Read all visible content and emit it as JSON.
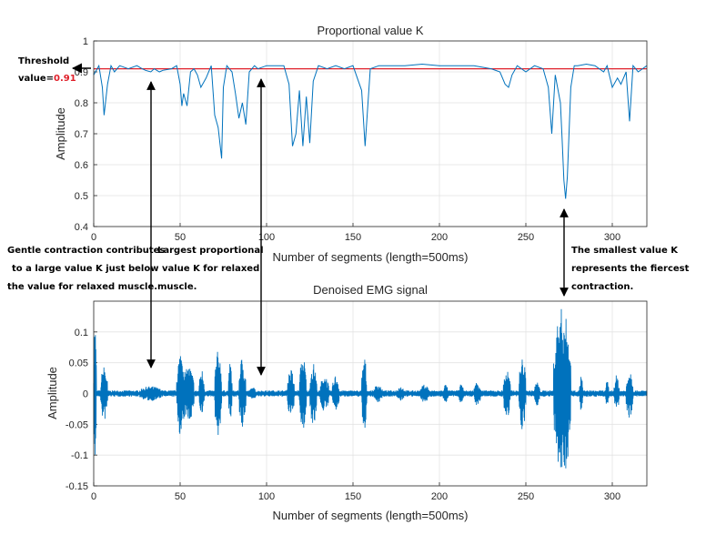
{
  "chart_data": [
    {
      "type": "line",
      "title": "Proportional value K",
      "xlabel": "Number of segments (length=500ms)",
      "ylabel": "Amplitude",
      "xlim": [
        0,
        320
      ],
      "ylim": [
        0.4,
        1
      ],
      "xticks": [
        "0",
        "50",
        "100",
        "150",
        "200",
        "250",
        "300"
      ],
      "yticks": [
        "0.4",
        "0.5",
        "0.6",
        "0.7",
        "0.8",
        "0.9",
        "1"
      ],
      "grid": true,
      "line_color": "#0072bd",
      "threshold": {
        "value": 0.91,
        "color": "#e0202a"
      },
      "series": [
        {
          "x": [
            0,
            3,
            5,
            6,
            8,
            10,
            12,
            15,
            20,
            25,
            28,
            30,
            33,
            35,
            38,
            40,
            45,
            48,
            50,
            51,
            52,
            54,
            56,
            58,
            60,
            62,
            65,
            68,
            70,
            72,
            74,
            75,
            77,
            80,
            82,
            84,
            86,
            88,
            90,
            93,
            95,
            100,
            105,
            110,
            113,
            115,
            117,
            119,
            121,
            123,
            125,
            127,
            130,
            135,
            140,
            145,
            150,
            155,
            157,
            160,
            165,
            170,
            180,
            190,
            200,
            210,
            220,
            230,
            235,
            238,
            240,
            242,
            245,
            250,
            255,
            260,
            263,
            265,
            267,
            270,
            271,
            272,
            273,
            274,
            276,
            278,
            280,
            285,
            290,
            295,
            297,
            300,
            303,
            305,
            308,
            310,
            312,
            315,
            320
          ],
          "y": [
            0.89,
            0.92,
            0.85,
            0.76,
            0.86,
            0.92,
            0.9,
            0.92,
            0.91,
            0.92,
            0.91,
            0.905,
            0.9,
            0.91,
            0.9,
            0.905,
            0.91,
            0.92,
            0.86,
            0.79,
            0.83,
            0.79,
            0.9,
            0.91,
            0.89,
            0.85,
            0.88,
            0.92,
            0.76,
            0.72,
            0.62,
            0.85,
            0.92,
            0.9,
            0.83,
            0.75,
            0.8,
            0.73,
            0.9,
            0.92,
            0.91,
            0.92,
            0.92,
            0.92,
            0.86,
            0.66,
            0.7,
            0.84,
            0.66,
            0.82,
            0.67,
            0.87,
            0.92,
            0.91,
            0.92,
            0.91,
            0.92,
            0.84,
            0.66,
            0.91,
            0.92,
            0.92,
            0.92,
            0.925,
            0.92,
            0.92,
            0.92,
            0.91,
            0.9,
            0.86,
            0.85,
            0.89,
            0.92,
            0.9,
            0.92,
            0.91,
            0.85,
            0.7,
            0.89,
            0.8,
            0.68,
            0.55,
            0.49,
            0.56,
            0.85,
            0.92,
            0.92,
            0.925,
            0.92,
            0.9,
            0.92,
            0.85,
            0.88,
            0.86,
            0.9,
            0.74,
            0.92,
            0.9,
            0.92
          ]
        }
      ]
    },
    {
      "type": "line",
      "title": "Denoised EMG signal",
      "xlabel": "Number of segments (length=500ms)",
      "ylabel": "Amplitude",
      "xlim": [
        0,
        320
      ],
      "ylim": [
        -0.15,
        0.15
      ],
      "xticks": [
        "0",
        "50",
        "100",
        "150",
        "200",
        "250",
        "300"
      ],
      "yticks": [
        "-0.15",
        "-0.1",
        "-0.05",
        "0",
        "0.05",
        "0.1"
      ],
      "grid": true,
      "line_color": "#0072bd",
      "bursts": [
        {
          "x": [
            0,
            1.5
          ],
          "amplitude": 0.12
        },
        {
          "x": [
            4,
            8
          ],
          "amplitude": 0.045
        },
        {
          "x": [
            26,
            40
          ],
          "amplitude": 0.012
        },
        {
          "x": [
            48,
            53
          ],
          "amplitude": 0.07
        },
        {
          "x": [
            52,
            58
          ],
          "amplitude": 0.045
        },
        {
          "x": [
            61,
            64
          ],
          "amplitude": 0.04
        },
        {
          "x": [
            70,
            74
          ],
          "amplitude": 0.07
        },
        {
          "x": [
            78,
            80
          ],
          "amplitude": 0.05
        },
        {
          "x": [
            84,
            88
          ],
          "amplitude": 0.06
        },
        {
          "x": [
            90,
            94
          ],
          "amplitude": 0.01
        },
        {
          "x": [
            112,
            116
          ],
          "amplitude": 0.04
        },
        {
          "x": [
            119,
            123
          ],
          "amplitude": 0.06
        },
        {
          "x": [
            125,
            129
          ],
          "amplitude": 0.05
        },
        {
          "x": [
            131,
            136
          ],
          "amplitude": 0.03
        },
        {
          "x": [
            138,
            142
          ],
          "amplitude": 0.03
        },
        {
          "x": [
            155,
            158
          ],
          "amplitude": 0.06
        },
        {
          "x": [
            162,
            167
          ],
          "amplitude": 0.015
        },
        {
          "x": [
            175,
            180
          ],
          "amplitude": 0.012
        },
        {
          "x": [
            189,
            194
          ],
          "amplitude": 0.015
        },
        {
          "x": [
            202,
            205
          ],
          "amplitude": 0.015
        },
        {
          "x": [
            211,
            214
          ],
          "amplitude": 0.015
        },
        {
          "x": [
            220,
            224
          ],
          "amplitude": 0.02
        },
        {
          "x": [
            237,
            241
          ],
          "amplitude": 0.04
        },
        {
          "x": [
            246,
            250
          ],
          "amplitude": 0.06
        },
        {
          "x": [
            255,
            258
          ],
          "amplitude": 0.02
        },
        {
          "x": [
            266,
            276
          ],
          "amplitude": 0.14
        },
        {
          "x": [
            281,
            283
          ],
          "amplitude": 0.03
        },
        {
          "x": [
            296,
            298
          ],
          "amplitude": 0.02
        },
        {
          "x": [
            301,
            304
          ],
          "amplitude": 0.03
        },
        {
          "x": [
            308,
            312
          ],
          "amplitude": 0.04
        }
      ],
      "baseline_noise": 0.005
    }
  ],
  "annotations": {
    "threshold": {
      "line1": "Threshold",
      "line2_prefix": "value=",
      "line2_value": "0.91"
    },
    "gentle": [
      "Gentle contraction contributes",
      "to a large value K just below",
      "the value for relaxed muscle."
    ],
    "largest": [
      "Largest proportional",
      "value K for relaxed",
      "muscle."
    ],
    "smallest": [
      "The smallest value K",
      "represents the fiercest",
      "contraction."
    ]
  }
}
